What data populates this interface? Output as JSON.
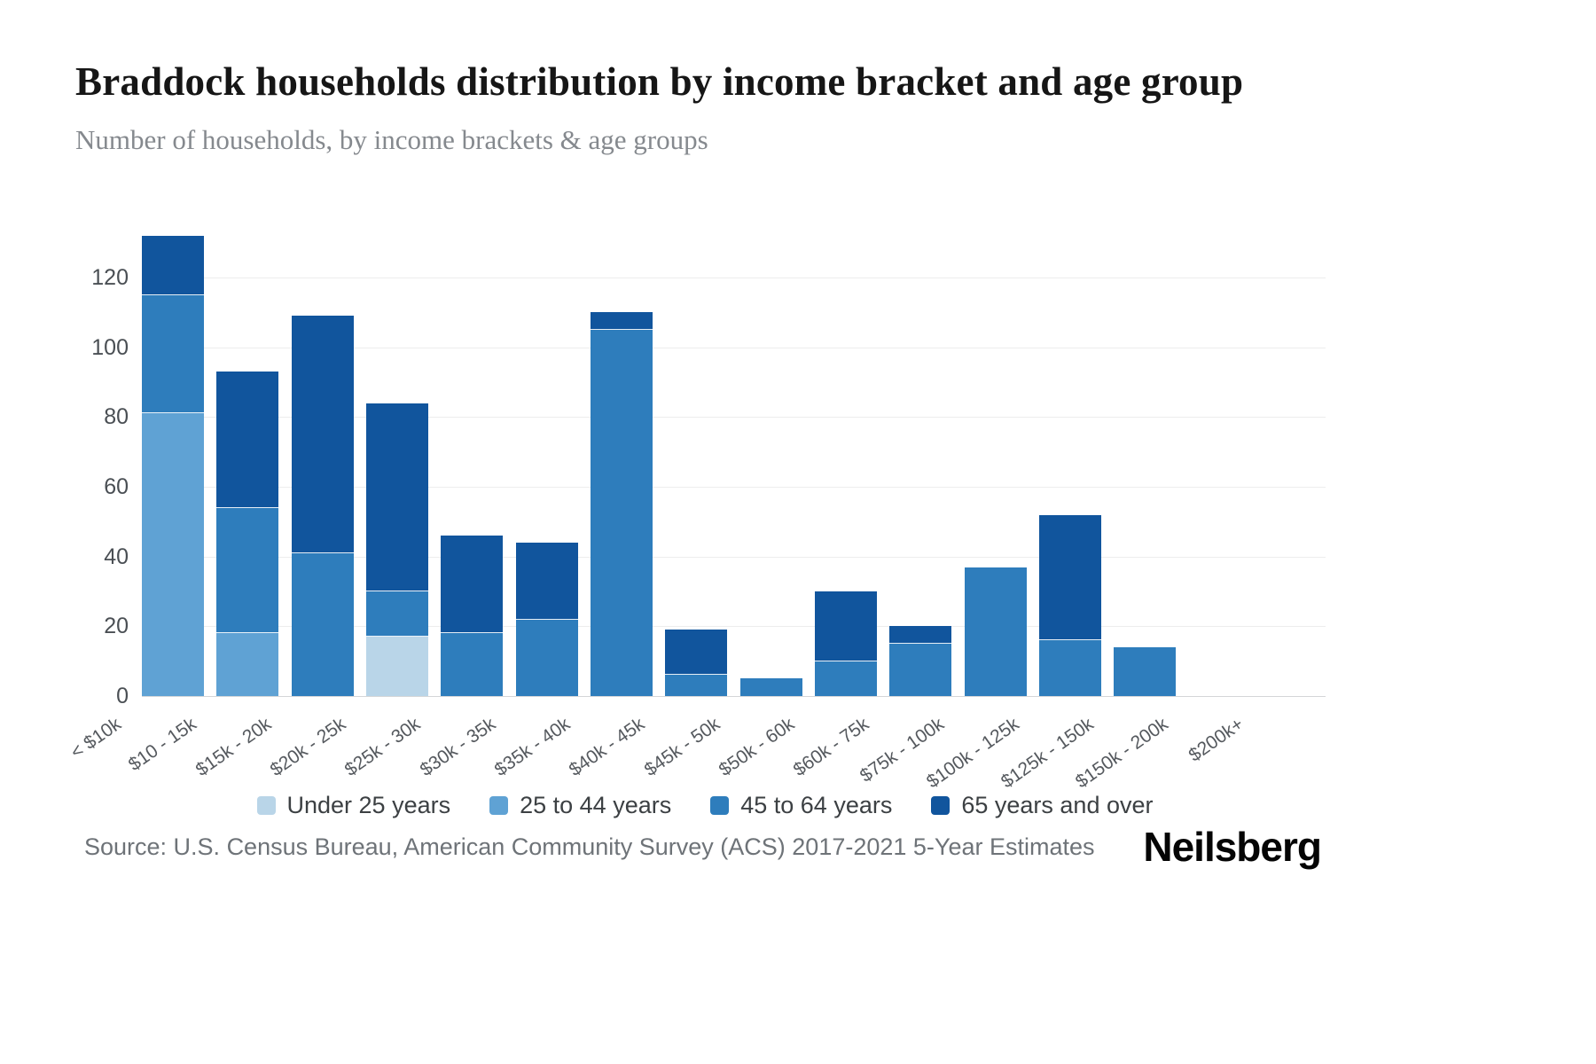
{
  "header": {
    "title": "Braddock households distribution by income bracket and age group",
    "subtitle": "Number of households, by income brackets & age groups"
  },
  "chart_data": {
    "type": "bar",
    "stacked": true,
    "title": "Braddock households distribution by income bracket and age group",
    "xlabel": "",
    "ylabel": "",
    "categories": [
      "< $10k",
      "$10 - 15k",
      "$15k - 20k",
      "$20k - 25k",
      "$25k - 30k",
      "$30k - 35k",
      "$35k - 40k",
      "$40k - 45k",
      "$45k - 50k",
      "$50k - 60k",
      "$60k - 75k",
      "$75k - 100k",
      "$100k - 125k",
      "$125k - 150k",
      "$150k - 200k",
      "$200k+"
    ],
    "series": [
      {
        "name": "Under 25 years",
        "color": "#b9d5e8",
        "values": [
          0,
          0,
          0,
          17,
          0,
          0,
          0,
          0,
          0,
          0,
          0,
          0,
          0,
          0,
          0,
          0
        ]
      },
      {
        "name": "25 to 44 years",
        "color": "#5fa2d4",
        "values": [
          81,
          18,
          0,
          0,
          0,
          0,
          0,
          0,
          0,
          0,
          0,
          0,
          0,
          0,
          0,
          0
        ]
      },
      {
        "name": "45 to 64 years",
        "color": "#2e7dbc",
        "values": [
          34,
          36,
          41,
          13,
          18,
          22,
          105,
          6,
          5,
          10,
          15,
          37,
          16,
          14,
          0,
          0
        ]
      },
      {
        "name": "65 years and over",
        "color": "#11559d",
        "values": [
          17,
          39,
          68,
          54,
          28,
          22,
          5,
          13,
          0,
          20,
          5,
          0,
          36,
          0,
          0,
          0
        ]
      }
    ],
    "totals": [
      132,
      93,
      109,
      84,
      46,
      44,
      110,
      19,
      5,
      30,
      20,
      37,
      52,
      14,
      0,
      0
    ],
    "yticks": [
      0,
      20,
      40,
      60,
      80,
      100,
      120
    ],
    "ylim": [
      0,
      133
    ],
    "grid": true,
    "legend_position": "bottom"
  },
  "footer": {
    "source": "Source: U.S. Census Bureau, American Community Survey (ACS) 2017-2021 5-Year Estimates",
    "logo": "Neilsberg"
  }
}
